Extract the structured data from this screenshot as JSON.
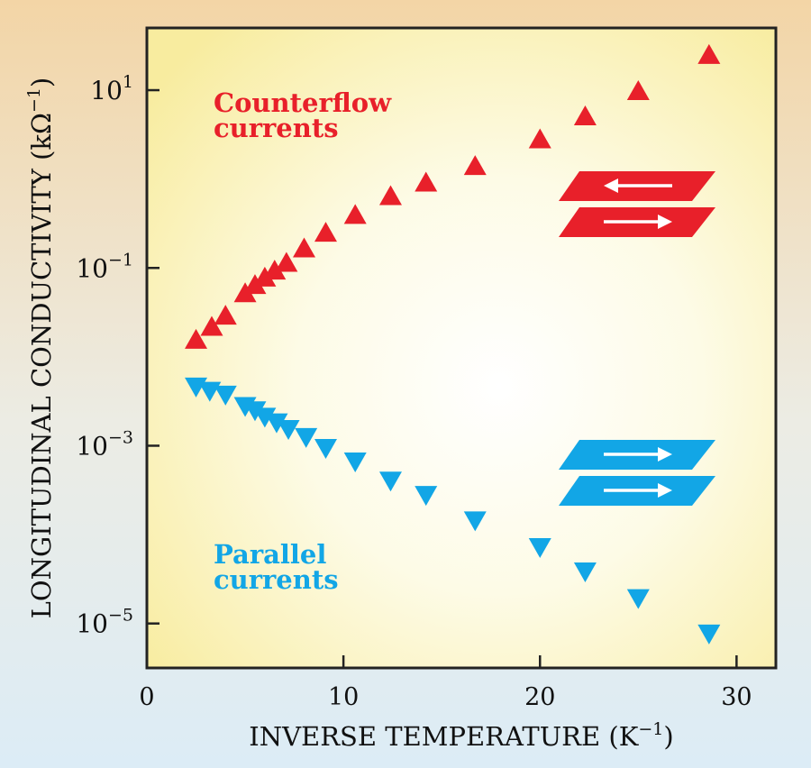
{
  "chart_data": {
    "type": "scatter",
    "xlabel": "INVERSE TEMPERATURE (K",
    "xlabel_sup": "−1",
    "xlabel_close": ")",
    "ylabel": "LONGITUDINAL CONDUCTIVITY (kΩ",
    "ylabel_sup": "−1",
    "ylabel_close": ")",
    "x_scale": "linear",
    "y_scale": "log",
    "xlim": [
      0,
      32
    ],
    "ylim_log10": [
      -5.5,
      1.7
    ],
    "x_ticks": [
      0,
      10,
      20,
      30
    ],
    "y_ticks": [
      {
        "base": "10",
        "exp": "1",
        "log10": 1
      },
      {
        "base": "10",
        "exp": "−1",
        "log10": -1
      },
      {
        "base": "10",
        "exp": "−3",
        "log10": -3
      },
      {
        "base": "10",
        "exp": "−5",
        "log10": -5
      }
    ],
    "grid": false,
    "series": [
      {
        "name": "Counterflow currents",
        "label_lines": [
          "Counterflow",
          "currents"
        ],
        "marker": "triangle-up",
        "color": "#e8202a",
        "x": [
          2.5,
          3.3,
          4.0,
          5.0,
          5.5,
          6.0,
          6.5,
          7.1,
          8.0,
          9.1,
          10.6,
          12.4,
          14.2,
          16.7,
          20.0,
          22.3,
          25.0,
          28.6
        ],
        "y": [
          0.015,
          0.021,
          0.028,
          0.05,
          0.062,
          0.075,
          0.09,
          0.11,
          0.16,
          0.24,
          0.38,
          0.62,
          0.88,
          1.35,
          2.7,
          4.9,
          9.4,
          24.0
        ]
      },
      {
        "name": "Parallel currents",
        "label_lines": [
          "Parallel",
          "currents"
        ],
        "marker": "triangle-down",
        "color": "#12a6e6",
        "x": [
          2.5,
          3.2,
          4.0,
          5.0,
          5.5,
          6.0,
          6.6,
          7.2,
          8.1,
          9.1,
          10.6,
          12.4,
          14.2,
          16.7,
          20.0,
          22.3,
          25.0,
          28.6
        ],
        "y": [
          0.0048,
          0.0043,
          0.0039,
          0.0029,
          0.0026,
          0.0022,
          0.0019,
          0.0016,
          0.0013,
          0.00098,
          0.00069,
          0.00042,
          0.00029,
          0.00015,
          7.5e-05,
          4e-05,
          2e-05,
          8e-06
        ]
      }
    ],
    "icons": [
      {
        "name": "counterflow-planes-icon",
        "color": "#e8202a",
        "arrows": [
          "left",
          "right"
        ]
      },
      {
        "name": "parallel-planes-icon",
        "color": "#12a6e6",
        "arrows": [
          "right",
          "right"
        ]
      }
    ]
  }
}
